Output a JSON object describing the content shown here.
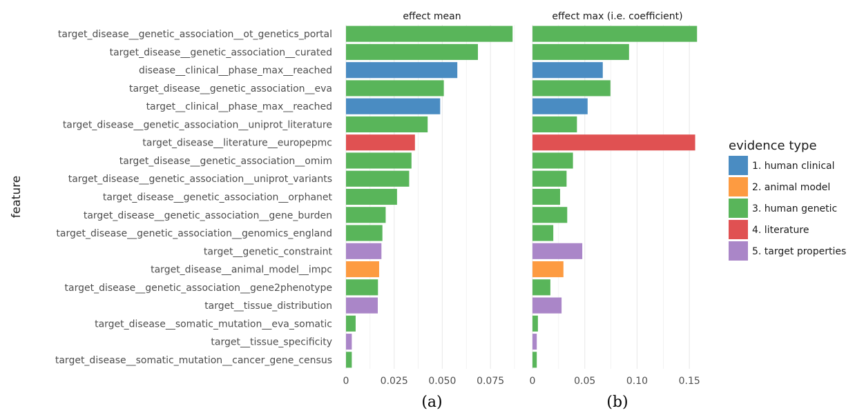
{
  "chart_data": {
    "type": "bar",
    "orientation": "horizontal",
    "ylabel": "feature",
    "features": [
      "target_disease__genetic_association__ot_genetics_portal",
      "target_disease__genetic_association__curated",
      "disease__clinical__phase_max__reached",
      "target_disease__genetic_association__eva",
      "target__clinical__phase_max__reached",
      "target_disease__genetic_association__uniprot_literature",
      "target_disease__literature__europepmc",
      "target_disease__genetic_association__omim",
      "target_disease__genetic_association__uniprot_variants",
      "target_disease__genetic_association__orphanet",
      "target_disease__genetic_association__gene_burden",
      "target_disease__genetic_association__genomics_england",
      "target__genetic_constraint",
      "target_disease__animal_model__impc",
      "target_disease__genetic_association__gene2phenotype",
      "target__tissue_distribution",
      "target_disease__somatic_mutation__eva_somatic",
      "target__tissue_specificity",
      "target_disease__somatic_mutation__cancer_gene_census"
    ],
    "evidence_type": [
      3,
      3,
      1,
      3,
      1,
      3,
      4,
      3,
      3,
      3,
      3,
      3,
      5,
      2,
      3,
      5,
      3,
      5,
      3
    ],
    "panels": [
      {
        "title": "effect mean",
        "sublabel": "(a)",
        "xlim": [
          0,
          0.0893
        ],
        "xticks": [
          0,
          0.025,
          0.05,
          0.075
        ],
        "xtick_labels": [
          "0",
          "0.025",
          "0.050",
          "0.075"
        ],
        "values": [
          0.0865,
          0.0685,
          0.0578,
          0.0508,
          0.0489,
          0.0424,
          0.0358,
          0.034,
          0.0328,
          0.0265,
          0.0206,
          0.0189,
          0.0184,
          0.0172,
          0.0166,
          0.0165,
          0.005,
          0.003,
          0.003
        ]
      },
      {
        "title": "effect max (i.e. coefficient)",
        "sublabel": "(b)",
        "xlim": [
          0,
          0.1624
        ],
        "xticks": [
          0,
          0.05,
          0.1,
          0.15
        ],
        "xtick_labels": [
          "0",
          "0.05",
          "0.10",
          "0.15"
        ],
        "values": [
          0.1573,
          0.0923,
          0.0672,
          0.0745,
          0.0527,
          0.0425,
          0.1555,
          0.0387,
          0.0326,
          0.0264,
          0.0332,
          0.0199,
          0.0476,
          0.0296,
          0.0171,
          0.0278,
          0.0052,
          0.0041,
          0.0041
        ]
      }
    ],
    "legend": {
      "title": "evidence type",
      "position": "right",
      "items": [
        {
          "id": 1,
          "label": "1. human clinical",
          "color": "#4a8cc2"
        },
        {
          "id": 2,
          "label": "2. animal model",
          "color": "#fd9b41"
        },
        {
          "id": 3,
          "label": "3. human genetic",
          "color": "#59b55a"
        },
        {
          "id": 4,
          "label": "4. literature",
          "color": "#e05152"
        },
        {
          "id": 5,
          "label": "5. target properties",
          "color": "#aa86c8"
        }
      ]
    },
    "grid": true
  }
}
